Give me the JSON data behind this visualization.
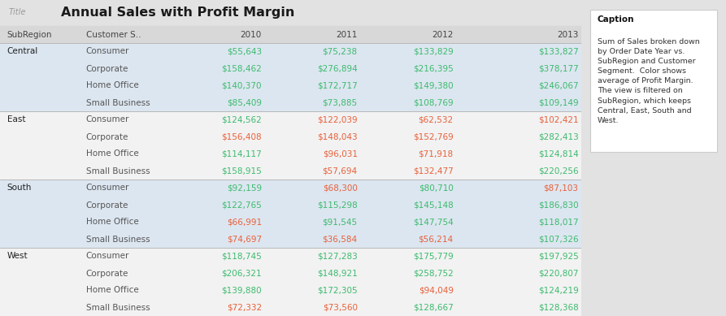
{
  "title": "Annual Sales with Profit Margin",
  "title_label": "Title",
  "caption_label": "Caption",
  "caption_text": "Sum of Sales broken down\nby Order Date Year vs.\nSubRegion and Customer\nSegment.  Color shows\naverage of Profit Margin.\nThe view is filtered on\nSubRegion, which keeps\nCentral, East, South and\nWest.",
  "col_headers": [
    "SubRegion",
    "Customer S..",
    "2010",
    "2011",
    "2012",
    "2013"
  ],
  "regions": [
    "Central",
    "East",
    "South",
    "West"
  ],
  "segments": [
    "Consumer",
    "Corporate",
    "Home Office",
    "Small Business"
  ],
  "years": [
    "2010",
    "2011",
    "2012",
    "2013"
  ],
  "data": {
    "Central": {
      "Consumer": {
        "2010": "$55,643",
        "2011": "$75,238",
        "2012": "$133,829",
        "2013": "$133,827"
      },
      "Corporate": {
        "2010": "$158,462",
        "2011": "$276,894",
        "2012": "$216,395",
        "2013": "$378,177"
      },
      "Home Office": {
        "2010": "$140,370",
        "2011": "$172,717",
        "2012": "$149,380",
        "2013": "$246,067"
      },
      "Small Business": {
        "2010": "$85,409",
        "2011": "$73,885",
        "2012": "$108,769",
        "2013": "$109,149"
      }
    },
    "East": {
      "Consumer": {
        "2010": "$124,562",
        "2011": "$122,039",
        "2012": "$62,532",
        "2013": "$102,421"
      },
      "Corporate": {
        "2010": "$156,408",
        "2011": "$148,043",
        "2012": "$152,769",
        "2013": "$282,413"
      },
      "Home Office": {
        "2010": "$114,117",
        "2011": "$96,031",
        "2012": "$71,918",
        "2013": "$124,814"
      },
      "Small Business": {
        "2010": "$158,915",
        "2011": "$57,694",
        "2012": "$132,477",
        "2013": "$220,256"
      }
    },
    "South": {
      "Consumer": {
        "2010": "$92,159",
        "2011": "$68,300",
        "2012": "$80,710",
        "2013": "$87,103"
      },
      "Corporate": {
        "2010": "$122,765",
        "2011": "$115,298",
        "2012": "$145,148",
        "2013": "$186,830"
      },
      "Home Office": {
        "2010": "$66,991",
        "2011": "$91,545",
        "2012": "$147,754",
        "2013": "$118,017"
      },
      "Small Business": {
        "2010": "$74,697",
        "2011": "$36,584",
        "2012": "$56,214",
        "2013": "$107,326"
      }
    },
    "West": {
      "Consumer": {
        "2010": "$118,745",
        "2011": "$127,283",
        "2012": "$175,779",
        "2013": "$197,925"
      },
      "Corporate": {
        "2010": "$206,321",
        "2011": "$148,921",
        "2012": "$258,752",
        "2013": "$220,807"
      },
      "Home Office": {
        "2010": "$139,880",
        "2011": "$172,305",
        "2012": "$94,049",
        "2013": "$124,219"
      },
      "Small Business": {
        "2010": "$72,332",
        "2011": "$73,560",
        "2012": "$128,667",
        "2013": "$128,368"
      }
    }
  },
  "colors": {
    "Central": {
      "Consumer": {
        "2010": "#3dba6e",
        "2011": "#3dba6e",
        "2012": "#3dba6e",
        "2013": "#3dba6e"
      },
      "Corporate": {
        "2010": "#3dba6e",
        "2011": "#3dba6e",
        "2012": "#3dba6e",
        "2013": "#3dba6e"
      },
      "Home Office": {
        "2010": "#3dba6e",
        "2011": "#3dba6e",
        "2012": "#3dba6e",
        "2013": "#3dba6e"
      },
      "Small Business": {
        "2010": "#3dba6e",
        "2011": "#3dba6e",
        "2012": "#3dba6e",
        "2013": "#3dba6e"
      }
    },
    "East": {
      "Consumer": {
        "2010": "#3dba6e",
        "2011": "#e8603a",
        "2012": "#e8603a",
        "2013": "#e8603a"
      },
      "Corporate": {
        "2010": "#e8603a",
        "2011": "#e8603a",
        "2012": "#e8603a",
        "2013": "#3dba6e"
      },
      "Home Office": {
        "2010": "#3dba6e",
        "2011": "#e8603a",
        "2012": "#e8603a",
        "2013": "#3dba6e"
      },
      "Small Business": {
        "2010": "#3dba6e",
        "2011": "#e8603a",
        "2012": "#e8603a",
        "2013": "#3dba6e"
      }
    },
    "South": {
      "Consumer": {
        "2010": "#3dba6e",
        "2011": "#e8603a",
        "2012": "#3dba6e",
        "2013": "#e8603a"
      },
      "Corporate": {
        "2010": "#3dba6e",
        "2011": "#3dba6e",
        "2012": "#3dba6e",
        "2013": "#3dba6e"
      },
      "Home Office": {
        "2010": "#e8603a",
        "2011": "#3dba6e",
        "2012": "#3dba6e",
        "2013": "#3dba6e"
      },
      "Small Business": {
        "2010": "#e8603a",
        "2011": "#e8603a",
        "2012": "#e8603a",
        "2013": "#3dba6e"
      }
    },
    "West": {
      "Consumer": {
        "2010": "#3dba6e",
        "2011": "#3dba6e",
        "2012": "#3dba6e",
        "2013": "#3dba6e"
      },
      "Corporate": {
        "2010": "#3dba6e",
        "2011": "#3dba6e",
        "2012": "#3dba6e",
        "2013": "#3dba6e"
      },
      "Home Office": {
        "2010": "#3dba6e",
        "2011": "#3dba6e",
        "2012": "#e8603a",
        "2013": "#3dba6e"
      },
      "Small Business": {
        "2010": "#e8603a",
        "2011": "#e8603a",
        "2012": "#3dba6e",
        "2013": "#3dba6e"
      }
    }
  },
  "bg_color": "#e2e2e2",
  "header_bg": "#d8d8d8",
  "title_bg": "#ffffff",
  "row_even": "#dce6f0",
  "row_odd": "#f2f2f2",
  "sep_color": "#b0b0b0",
  "header_line_color": "#b0b0b0",
  "caption_border": "#cccccc"
}
